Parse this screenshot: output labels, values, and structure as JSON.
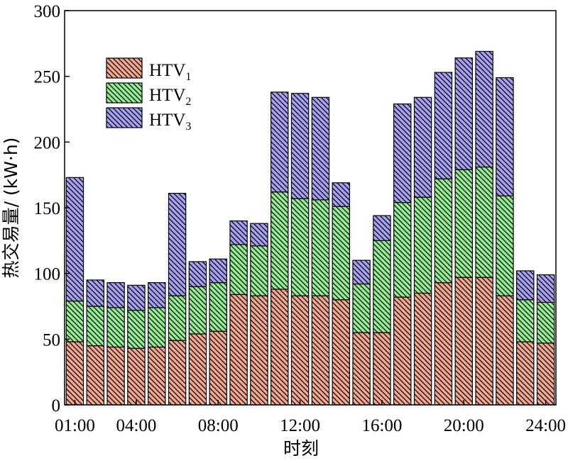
{
  "chart_data": {
    "type": "bar",
    "stacked": true,
    "x": [
      "01:00",
      "02:00",
      "03:00",
      "04:00",
      "05:00",
      "06:00",
      "07:00",
      "08:00",
      "09:00",
      "10:00",
      "11:00",
      "12:00",
      "13:00",
      "14:00",
      "15:00",
      "16:00",
      "17:00",
      "18:00",
      "19:00",
      "20:00",
      "21:00",
      "22:00",
      "23:00",
      "24:00"
    ],
    "xticks": [
      "01:00",
      "04:00",
      "08:00",
      "12:00",
      "16:00",
      "20:00",
      "24:00"
    ],
    "xlabel": "时刻",
    "ylabel": "热交易量/ (kW·h)",
    "ylim": [
      0,
      300
    ],
    "yticks": [
      0,
      50,
      100,
      150,
      200,
      250,
      300
    ],
    "legend_position": "top-left",
    "grid": false,
    "series": [
      {
        "name": "HTV",
        "subscript": "1",
        "color": "#f4a78c",
        "values": [
          48,
          45,
          44,
          43,
          44,
          49,
          54,
          56,
          84,
          83,
          88,
          83,
          83,
          80,
          55,
          55,
          82,
          85,
          93,
          97,
          97,
          83,
          48,
          47
        ]
      },
      {
        "name": "HTV",
        "subscript": "2",
        "color": "#90f090",
        "values": [
          31,
          30,
          30,
          29,
          30,
          34,
          36,
          37,
          38,
          38,
          74,
          74,
          73,
          71,
          37,
          70,
          72,
          73,
          79,
          82,
          84,
          76,
          32,
          31
        ]
      },
      {
        "name": "HTV",
        "subscript": "3",
        "color": "#a7a0f4",
        "values": [
          94,
          20,
          19,
          19,
          19,
          78,
          19,
          18,
          18,
          17,
          76,
          80,
          78,
          18,
          18,
          19,
          75,
          76,
          81,
          85,
          88,
          90,
          22,
          21
        ]
      }
    ]
  }
}
